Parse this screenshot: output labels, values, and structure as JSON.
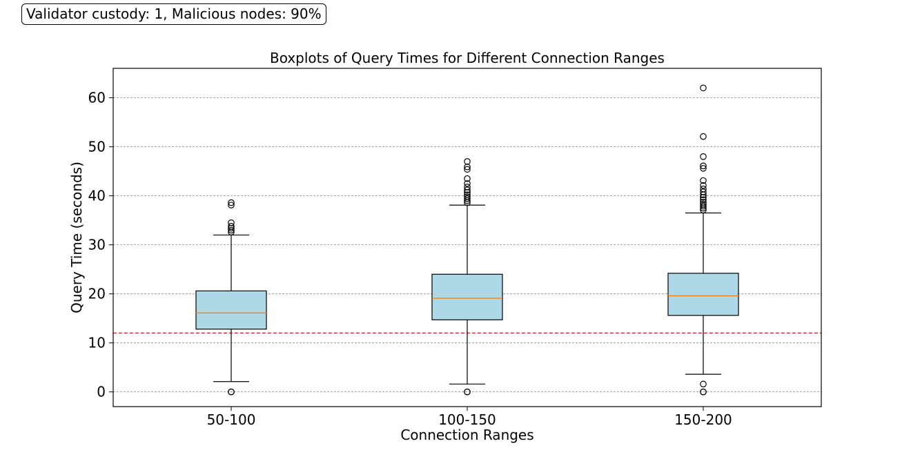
{
  "annotation": "Validator custody: 1, Malicious nodes: 90%",
  "chart_data": {
    "type": "boxplot",
    "title": "Boxplots of Query Times for Different Connection Ranges",
    "xlabel": "Connection Ranges",
    "ylabel": "Query Time (seconds)",
    "ylim": [
      -3,
      66
    ],
    "yticks": [
      0,
      10,
      20,
      30,
      40,
      50,
      60
    ],
    "grid": "y",
    "reference_line": {
      "y": 12,
      "color": "#d62728",
      "style": "dashed"
    },
    "box_color": "#add8e6",
    "median_color": "#ff7f0e",
    "categories": [
      "50-100",
      "100-150",
      "150-200"
    ],
    "boxes": [
      {
        "whisker_low": 2.1,
        "q1": 12.8,
        "median": 16.1,
        "q3": 20.6,
        "whisker_high": 32.0,
        "outliers": [
          0,
          0,
          32.6,
          33.0,
          33.4,
          33.8,
          34.5,
          38.1,
          38.6
        ]
      },
      {
        "whisker_low": 1.6,
        "q1": 14.7,
        "median": 19.1,
        "q3": 24.0,
        "whisker_high": 38.1,
        "outliers": [
          0,
          0,
          38.6,
          39.0,
          39.4,
          39.8,
          40.2,
          40.7,
          41.2,
          41.8,
          42.5,
          43.5,
          45.4,
          45.9,
          47.0
        ]
      },
      {
        "whisker_low": 3.6,
        "q1": 15.6,
        "median": 19.6,
        "q3": 24.2,
        "whisker_high": 36.5,
        "outliers": [
          0,
          0,
          1.6,
          37.1,
          37.5,
          37.9,
          38.3,
          38.7,
          39.2,
          39.7,
          40.2,
          40.8,
          41.4,
          42.1,
          43.1,
          45.6,
          46.1,
          48.0,
          52.1,
          62.0
        ]
      }
    ]
  }
}
